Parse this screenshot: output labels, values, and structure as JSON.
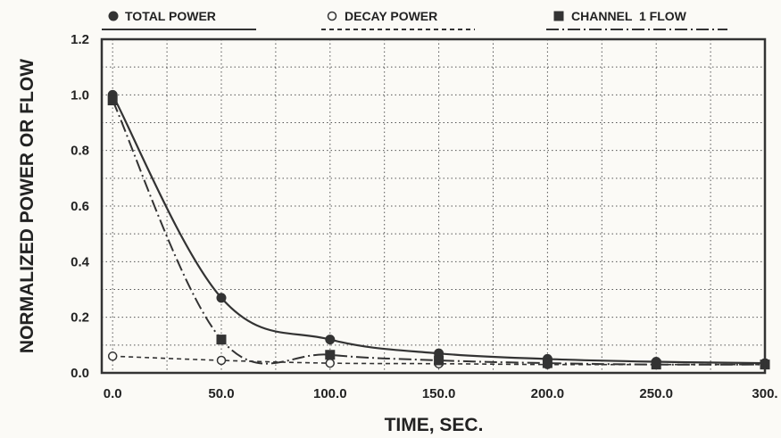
{
  "chart_data": {
    "type": "line",
    "xlabel": "TIME, SEC.",
    "ylabel": "NORMALIZED POWER OR FLOW",
    "xlim": [
      -5,
      300
    ],
    "ylim": [
      0,
      1.2
    ],
    "x_ticks": [
      0,
      50,
      100,
      150,
      200,
      250,
      300
    ],
    "x_tick_labels": [
      "0.0",
      "50.0",
      "100.0",
      "150.0",
      "200.0",
      "250.0",
      "300."
    ],
    "y_ticks": [
      0,
      0.2,
      0.4,
      0.6,
      0.8,
      1.0,
      1.2
    ],
    "y_tick_labels": [
      "0.0",
      "0.2",
      "0.4",
      "0.6",
      "0.8",
      "1.0",
      "1.2"
    ],
    "grid": true,
    "legend_position": "top",
    "series": [
      {
        "name": "TOTAL POWER",
        "marker": "filled-circle",
        "line_style": "solid",
        "x": [
          0,
          50,
          100,
          150,
          200,
          250,
          300
        ],
        "y": [
          1.0,
          0.27,
          0.12,
          0.07,
          0.05,
          0.04,
          0.035
        ],
        "color": "#333333"
      },
      {
        "name": "DECAY POWER",
        "marker": "open-circle",
        "line_style": "dashed",
        "x": [
          0,
          50,
          100,
          150,
          200,
          250,
          300
        ],
        "y": [
          0.06,
          0.045,
          0.035,
          0.033,
          0.03,
          0.03,
          0.03
        ],
        "color": "#333333"
      },
      {
        "name": "CHANNEL  1 FLOW",
        "marker": "filled-square",
        "line_style": "dash-dot",
        "x": [
          0,
          50,
          100,
          150,
          200,
          250,
          300
        ],
        "y": [
          0.98,
          0.12,
          0.065,
          0.045,
          0.035,
          0.03,
          0.03
        ],
        "color": "#333333"
      }
    ]
  }
}
